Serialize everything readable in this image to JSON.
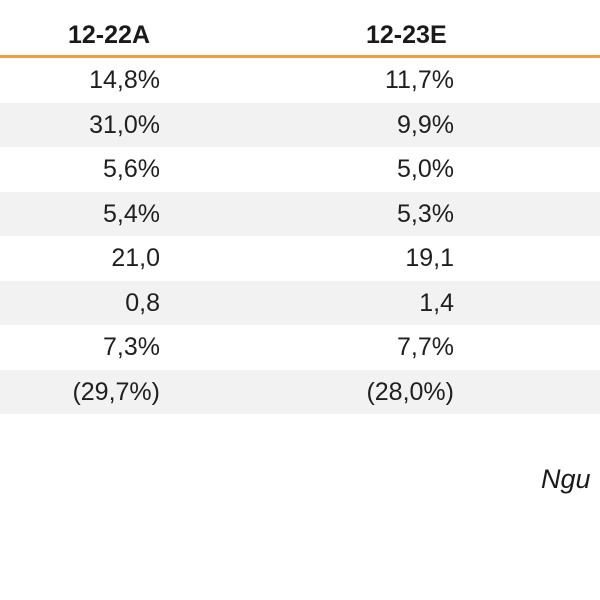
{
  "table": {
    "headers": [
      "12-22A",
      "12-23E"
    ],
    "rows": [
      {
        "col1": "14,8%",
        "col2": "11,7%"
      },
      {
        "col1": "31,0%",
        "col2": "9,9%"
      },
      {
        "col1": "5,6%",
        "col2": "5,0%"
      },
      {
        "col1": "5,4%",
        "col2": "5,3%"
      },
      {
        "col1": "21,0",
        "col2": "19,1"
      },
      {
        "col1": "0,8",
        "col2": "1,4"
      },
      {
        "col1": "7,3%",
        "col2": "7,7%"
      },
      {
        "col1": "(29,7%)",
        "col2": "(28,0%)"
      }
    ]
  },
  "source_note": "Ngu",
  "colors": {
    "header_rule": "#f0a040",
    "row_shade": "#f2f2f2"
  }
}
